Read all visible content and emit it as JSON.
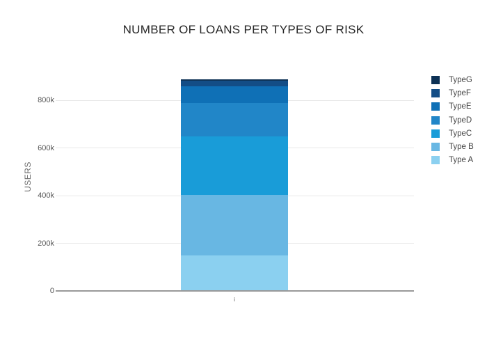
{
  "chart_data": {
    "type": "bar",
    "stacked": true,
    "title": "NUMBER OF LOANS PER TYPES OF RISK",
    "xlabel": "",
    "ylabel": "USERS",
    "categories": [
      "i"
    ],
    "series": [
      {
        "name": "Type A",
        "values": [
          148000
        ],
        "color": "#8bd0f0"
      },
      {
        "name": "Type B",
        "values": [
          255000
        ],
        "color": "#68b7e3"
      },
      {
        "name": "TypeC",
        "values": [
          246000
        ],
        "color": "#199cd8"
      },
      {
        "name": "TypeD",
        "values": [
          139000
        ],
        "color": "#2186c8"
      },
      {
        "name": "TypeE",
        "values": [
          71000
        ],
        "color": "#0f70b6"
      },
      {
        "name": "TypeF",
        "values": [
          23000
        ],
        "color": "#134d86"
      },
      {
        "name": "TypeG",
        "values": [
          6000
        ],
        "color": "#0d3155"
      }
    ],
    "total": 888000,
    "ylim": [
      0,
      950000
    ],
    "yticks": [
      {
        "value": 0,
        "label": "0"
      },
      {
        "value": 200000,
        "label": "200k"
      },
      {
        "value": 400000,
        "label": "400k"
      },
      {
        "value": 600000,
        "label": "600k"
      },
      {
        "value": 800000,
        "label": "800k"
      }
    ],
    "grid": true,
    "legend_position": "right",
    "legend_order_top_to_bottom": [
      "TypeG",
      "TypeF",
      "TypeE",
      "TypeD",
      "TypeC",
      "Type B",
      "Type A"
    ]
  },
  "colors": {
    "background": "#ffffff",
    "grid_line": "#e8e8e8",
    "axis_line": "#999999",
    "tick_label_text": "#565656",
    "axis_title_text": "#6e6e6e",
    "title_text": "#262626",
    "legend_text": "#444444"
  }
}
